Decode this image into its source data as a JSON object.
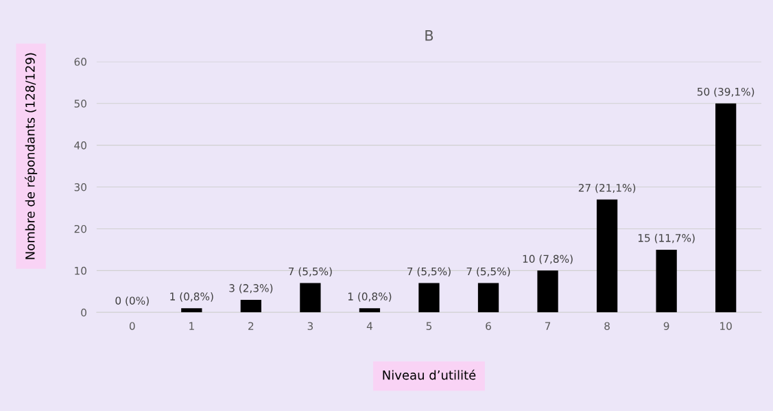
{
  "chart_data": {
    "type": "bar",
    "title": "B",
    "xlabel": "Niveau d’utilité",
    "ylabel": "Nombre de répondants (128/129)",
    "categories": [
      "0",
      "1",
      "2",
      "3",
      "4",
      "5",
      "6",
      "7",
      "8",
      "9",
      "10"
    ],
    "values": [
      0,
      1,
      3,
      7,
      1,
      7,
      7,
      10,
      27,
      15,
      50
    ],
    "value_labels": [
      "0 (0%)",
      "1 (0,8%)",
      "3 (2,3%)",
      "7 (5,5%)",
      "1 (0,8%)",
      "7 (5,5%)",
      "7 (5,5%)",
      "10 (7,8%)",
      "27 (21,1%)",
      "15 (11,7%)",
      "50 (39,1%)"
    ],
    "color": "#000000",
    "ylim": [
      0,
      60
    ],
    "yticks": [
      0,
      10,
      20,
      30,
      40,
      50,
      60
    ],
    "grid": "y"
  }
}
